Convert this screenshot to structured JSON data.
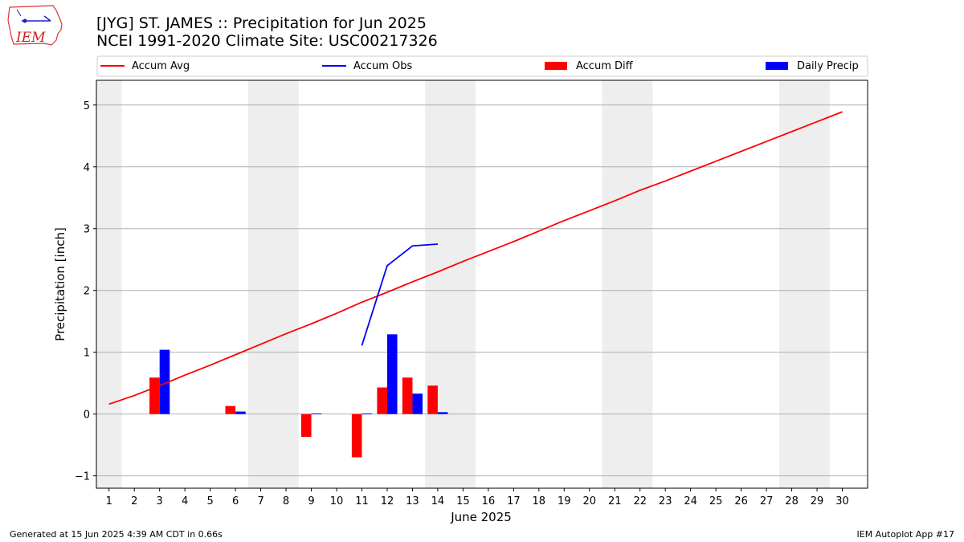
{
  "logo": {
    "text": "IEM"
  },
  "footer": {
    "left": "Generated at 15 Jun 2025 4:39 AM CDT in 0.66s",
    "right": "IEM Autoplot App #17"
  },
  "chart_data": {
    "type": "bar",
    "title": "[JYG] ST. JAMES :: Precipitation for Jun 2025",
    "subtitle": "NCEI 1991-2020 Climate Site: USC00217326",
    "xlabel": "June 2025",
    "ylabel": "Precipitation [inch]",
    "xlim": [
      0.5,
      31.0
    ],
    "ylim": [
      -1.2,
      5.4
    ],
    "yticks": [
      -1,
      0,
      1,
      2,
      3,
      4,
      5
    ],
    "xticks": [
      1,
      2,
      3,
      4,
      5,
      6,
      7,
      8,
      9,
      10,
      11,
      12,
      13,
      14,
      15,
      16,
      17,
      18,
      19,
      20,
      21,
      22,
      23,
      24,
      25,
      26,
      27,
      28,
      29,
      30
    ],
    "grid": "horizontal",
    "legend": {
      "placement": "top",
      "entries": [
        "Accum Avg",
        "Accum Obs",
        "Accum Diff",
        "Daily Precip"
      ]
    },
    "weekend_shading": [
      [
        0.5,
        1.5
      ],
      [
        6.5,
        8.5
      ],
      [
        13.5,
        15.5
      ],
      [
        20.5,
        22.5
      ],
      [
        27.5,
        29.5
      ]
    ],
    "colors": {
      "avg": "#ff0000",
      "obs": "#0000ff",
      "diff": "#ff0000",
      "daily": "#0000ff",
      "shade": "#eeeeee",
      "grid": "#b0b0b0"
    },
    "series": [
      {
        "name": "Accum Avg",
        "kind": "line",
        "x": [
          1,
          2,
          3,
          4,
          5,
          6,
          7,
          8,
          9,
          10,
          11,
          12,
          13,
          14,
          15,
          16,
          17,
          18,
          19,
          20,
          21,
          22,
          23,
          24,
          25,
          26,
          27,
          28,
          29,
          30
        ],
        "values": [
          0.16,
          0.3,
          0.46,
          0.63,
          0.79,
          0.96,
          1.13,
          1.3,
          1.46,
          1.63,
          1.81,
          1.97,
          2.14,
          2.3,
          2.47,
          2.63,
          2.79,
          2.96,
          3.13,
          3.29,
          3.45,
          3.62,
          3.77,
          3.93,
          4.09,
          4.25,
          4.41,
          4.57,
          4.73,
          4.89
        ]
      },
      {
        "name": "Accum Obs",
        "kind": "line",
        "x": [
          11,
          12,
          13,
          14
        ],
        "values": [
          1.11,
          2.4,
          2.72,
          2.75
        ]
      },
      {
        "name": "Accum Diff",
        "kind": "bar",
        "x": [
          3,
          6,
          9,
          11,
          12,
          13,
          14
        ],
        "values": [
          0.59,
          0.13,
          -0.37,
          -0.7,
          0.43,
          0.59,
          0.46
        ]
      },
      {
        "name": "Daily Precip",
        "kind": "bar",
        "x": [
          3,
          6,
          9,
          11,
          12,
          13,
          14
        ],
        "values": [
          1.04,
          0.04,
          0.01,
          0.01,
          1.29,
          0.33,
          0.03
        ]
      }
    ]
  }
}
